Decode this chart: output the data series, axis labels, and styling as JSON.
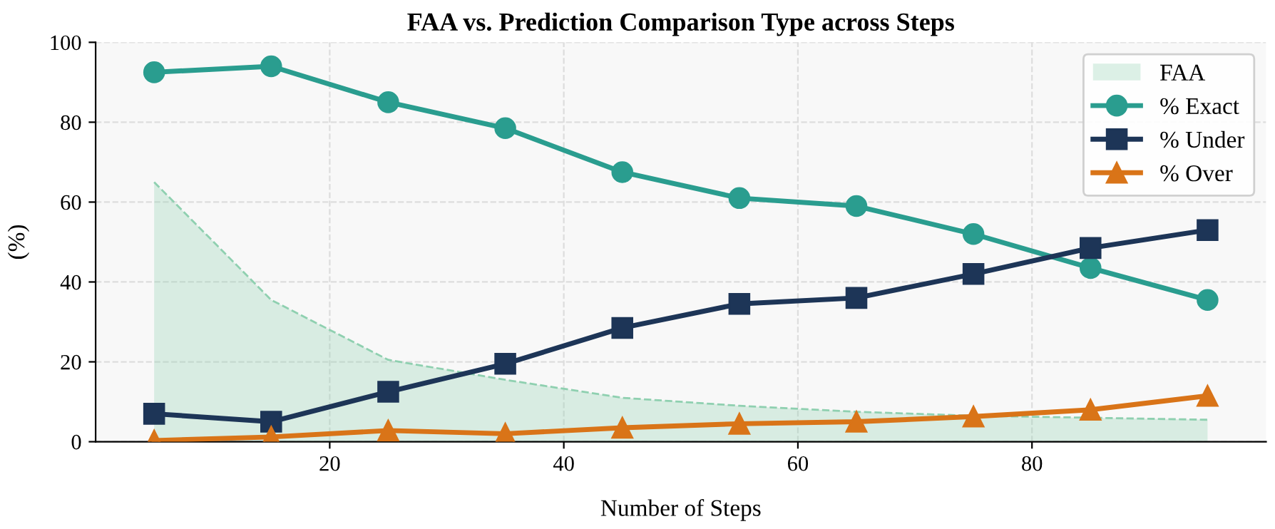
{
  "chart_data": {
    "type": "line",
    "title": "FAA vs. Prediction Comparison Type across Steps",
    "xlabel": "Number of Steps",
    "ylabel": "(%)",
    "x": [
      5,
      15,
      25,
      35,
      45,
      55,
      65,
      75,
      85,
      95
    ],
    "series": [
      {
        "name": "FAA",
        "type": "area",
        "color": "#8fd0b0",
        "line_style": "dashed",
        "values": [
          65,
          35.5,
          20.5,
          15.5,
          11,
          9,
          7.5,
          6.5,
          6,
          5.5
        ]
      },
      {
        "name": "% Exact",
        "color": "#2a9d8f",
        "marker": "circle",
        "values": [
          92.5,
          94,
          85,
          78.5,
          67.5,
          61,
          59,
          52,
          43.5,
          35.5
        ]
      },
      {
        "name": "% Under",
        "color": "#1d3557",
        "marker": "square",
        "values": [
          7,
          5,
          12.5,
          19.5,
          28.5,
          34.5,
          36,
          42,
          48.5,
          53
        ]
      },
      {
        "name": "% Over",
        "color": "#d97418",
        "marker": "triangle",
        "values": [
          0.3,
          1.2,
          2.8,
          2,
          3.5,
          4.5,
          5,
          6.3,
          8,
          11.5
        ]
      }
    ],
    "xlim": [
      0,
      100
    ],
    "xticks": [
      20,
      40,
      60,
      80
    ],
    "ylim": [
      0,
      100
    ],
    "yticks": [
      0,
      20,
      40,
      60,
      80,
      100
    ],
    "grid": true,
    "legend": "top right",
    "line_style": "solid"
  }
}
